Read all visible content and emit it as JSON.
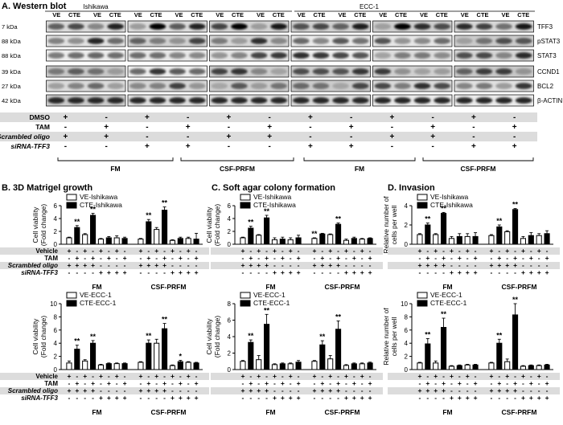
{
  "panel_a": {
    "title": "A. Western blot",
    "groups": [
      "Ishikawa",
      "ECC-1"
    ],
    "lane_pair": [
      "VE",
      "CTE"
    ],
    "mw_labels": [
      "7 kDa",
      "88 kDa",
      "88 kDa",
      "39 kDa",
      "27 kDa",
      "42 kDa"
    ],
    "proteins": [
      "TFF3",
      "pSTAT3",
      "STAT3",
      "CCND1",
      "BCL2",
      "β-ACTIN"
    ],
    "treatment_rows": [
      {
        "label": "DMSO",
        "italic": false,
        "pattern": [
          "+",
          "-",
          "+",
          "-",
          "+",
          "-",
          "+",
          "-",
          "+",
          "-",
          "+",
          "-"
        ]
      },
      {
        "label": "TAM",
        "italic": false,
        "pattern": [
          "-",
          "+",
          "-",
          "+",
          "-",
          "+",
          "-",
          "+",
          "-",
          "+",
          "-",
          "+"
        ]
      },
      {
        "label": "Scrambled oligo",
        "italic": true,
        "pattern": [
          "+",
          "+",
          "-",
          "-",
          "+",
          "+",
          "-",
          "-",
          "+",
          "+",
          "-",
          "-"
        ]
      },
      {
        "label": "siRNA-TFF3",
        "italic": true,
        "pattern": [
          "-",
          "-",
          "+",
          "+",
          "-",
          "-",
          "+",
          "+",
          "-",
          "-",
          "+",
          "+"
        ]
      }
    ],
    "media": [
      "FM",
      "CSF-PRFM",
      "FM",
      "CSF-PRFM"
    ]
  },
  "panel_b": {
    "title": "B. 3D Matrigel growth",
    "treatment_labels": [
      "Vehicle",
      "TAM",
      "Scrambled oligo",
      "siRNA-TFF3"
    ],
    "media": [
      "FM",
      "CSF-PRFM"
    ]
  },
  "panel_c": {
    "title": "C. Soft agar colony formation",
    "media": [
      "FM",
      "CSF-PRFM"
    ]
  },
  "panel_d": {
    "title": "D. Invasion",
    "media": [
      "FM",
      "CSF-PRFM"
    ]
  },
  "chart_data": [
    {
      "type": "bar",
      "panel": "B-top",
      "ylabel": "Cell viability\n(Fold change)",
      "ylim": [
        0,
        6
      ],
      "yticks": [
        0,
        2,
        4,
        6
      ],
      "series": [
        {
          "name": "VE-Ishikawa",
          "color": "#ffffff"
        },
        {
          "name": "CTE-Ishikawa",
          "color": "#000000"
        }
      ],
      "values": [
        1,
        2.6,
        1.5,
        4.5,
        0.8,
        1.0,
        1.0,
        0.9,
        0.8,
        3.5,
        2.3,
        5.3,
        0.6,
        0.9,
        0.9,
        0.8
      ],
      "errors": [
        0.1,
        0.3,
        0.15,
        0.3,
        0.1,
        0.2,
        0.3,
        0.2,
        0.1,
        0.35,
        0.3,
        0.5,
        0.1,
        0.2,
        0.2,
        0.9
      ],
      "significance": [
        "",
        "**",
        "",
        "**",
        "",
        "",
        "",
        "",
        "",
        "**",
        "",
        "**",
        "",
        "",
        "",
        ""
      ]
    },
    {
      "type": "bar",
      "panel": "C-top",
      "ylabel": "Cell viability\n(Fold change)",
      "ylim": [
        0,
        6
      ],
      "yticks": [
        0,
        2,
        4,
        6
      ],
      "series": [
        {
          "name": "VE-Ishikawa",
          "color": "#ffffff"
        },
        {
          "name": "CTE-Ishikawa",
          "color": "#000000"
        }
      ],
      "values": [
        1,
        2.5,
        1.4,
        4.1,
        0.7,
        0.8,
        0.7,
        1.0,
        0.9,
        1.6,
        1.5,
        3.1,
        0.6,
        0.9,
        0.8,
        0.9
      ],
      "errors": [
        0.1,
        0.3,
        0.1,
        0.4,
        0.3,
        0.3,
        0.3,
        0.4,
        0.1,
        0.1,
        0.1,
        0.2,
        0.2,
        0.2,
        0.1,
        0.1
      ],
      "significance": [
        "",
        "**",
        "",
        "**",
        "",
        "",
        "",
        "",
        "**",
        "",
        "",
        "**",
        "",
        "",
        "",
        ""
      ]
    },
    {
      "type": "bar",
      "panel": "D-top",
      "ylabel": "Relative number of\ncells per well",
      "ylim": [
        0,
        4
      ],
      "yticks": [
        0,
        2,
        4
      ],
      "series": [
        {
          "name": "VE-Ishikawa",
          "color": "#ffffff"
        },
        {
          "name": "CTE-Ishikawa",
          "color": "#000000"
        }
      ],
      "values": [
        1,
        2.0,
        1.0,
        3.2,
        0.6,
        0.8,
        0.8,
        0.8,
        0.9,
        1.8,
        1.3,
        3.6,
        0.6,
        0.9,
        0.9,
        1.1
      ],
      "errors": [
        0.1,
        0.2,
        0.1,
        0.1,
        0.2,
        0.3,
        0.3,
        0.4,
        0.1,
        0.2,
        0.1,
        0.1,
        0.2,
        0.3,
        0.2,
        0.3
      ],
      "significance": [
        "",
        "**",
        "",
        "**",
        "",
        "",
        "",
        "",
        "",
        "**",
        "",
        "**",
        "",
        "",
        "",
        ""
      ]
    },
    {
      "type": "bar",
      "panel": "B-bottom",
      "ylabel": "Cell viability\n(Fold change)",
      "ylim": [
        0,
        10
      ],
      "yticks": [
        0,
        2,
        4,
        6,
        8,
        10
      ],
      "series": [
        {
          "name": "VE-ECC-1",
          "color": "#ffffff"
        },
        {
          "name": "CTE-ECC-1",
          "color": "#000000"
        }
      ],
      "values": [
        1,
        3.1,
        1.3,
        4.0,
        0.7,
        0.9,
        0.9,
        0.9,
        1.1,
        4.0,
        4.0,
        6.2,
        0.6,
        1.2,
        1.1,
        1.0
      ],
      "errors": [
        0.3,
        0.6,
        0.2,
        0.4,
        0.1,
        0.1,
        0.1,
        0.1,
        0.1,
        0.5,
        0.6,
        0.8,
        0.1,
        0.2,
        0.1,
        0.1
      ],
      "significance": [
        "",
        "**",
        "",
        "**",
        "",
        "",
        "",
        "",
        "",
        "**",
        "",
        "**",
        "",
        "*",
        "",
        ""
      ]
    },
    {
      "type": "bar",
      "panel": "C-bottom",
      "ylabel": "Cell viability\n(Fold change)",
      "ylim": [
        0,
        8
      ],
      "yticks": [
        0,
        2,
        4,
        6,
        8
      ],
      "series": [
        {
          "name": "VE-ECC-1",
          "color": "#ffffff"
        },
        {
          "name": "CTE-ECC-1",
          "color": "#000000"
        }
      ],
      "values": [
        1,
        3.3,
        1.2,
        5.5,
        0.6,
        0.7,
        0.7,
        0.9,
        1.0,
        3.0,
        1.3,
        4.9,
        0.5,
        0.7,
        0.7,
        0.8
      ],
      "errors": [
        0.1,
        0.3,
        0.5,
        1.2,
        0.1,
        0.1,
        0.1,
        0.2,
        0.1,
        0.5,
        0.4,
        1.0,
        0.1,
        0.1,
        0.1,
        0.1
      ],
      "significance": [
        "",
        "**",
        "",
        "**",
        "",
        "",
        "",
        "",
        "",
        "**",
        "",
        "**",
        "",
        "",
        "",
        ""
      ]
    },
    {
      "type": "bar",
      "panel": "D-bottom",
      "ylabel": "Relative number of\ncells per well",
      "ylim": [
        0,
        10
      ],
      "yticks": [
        0,
        2,
        4,
        6,
        8,
        10
      ],
      "series": [
        {
          "name": "VE-ECC-1",
          "color": "#ffffff"
        },
        {
          "name": "CTE-ECC-1",
          "color": "#000000"
        }
      ],
      "values": [
        1,
        3.9,
        1.0,
        6.4,
        0.5,
        0.6,
        0.7,
        0.7,
        1.0,
        4.0,
        1.2,
        8.3,
        0.5,
        0.6,
        0.6,
        0.7
      ],
      "errors": [
        0.1,
        0.8,
        0.3,
        1.4,
        0.1,
        0.1,
        0.1,
        0.1,
        0.1,
        0.6,
        0.4,
        1.8,
        0.1,
        0.1,
        0.1,
        0.1
      ],
      "significance": [
        "",
        "**",
        "",
        "**",
        "",
        "",
        "",
        "",
        "",
        "**",
        "",
        "**",
        "",
        "",
        "",
        ""
      ]
    }
  ]
}
